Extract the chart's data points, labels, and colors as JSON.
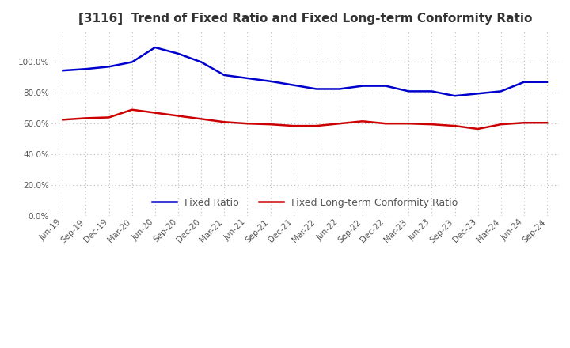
{
  "title": "[3116]  Trend of Fixed Ratio and Fixed Long-term Conformity Ratio",
  "x_labels": [
    "Jun-19",
    "Sep-19",
    "Dec-19",
    "Mar-20",
    "Jun-20",
    "Sep-20",
    "Dec-20",
    "Mar-21",
    "Jun-21",
    "Sep-21",
    "Dec-21",
    "Mar-22",
    "Jun-22",
    "Sep-22",
    "Dec-22",
    "Mar-23",
    "Jun-23",
    "Sep-23",
    "Dec-23",
    "Mar-24",
    "Jun-24",
    "Sep-24"
  ],
  "fixed_ratio": [
    94.5,
    95.5,
    97.0,
    100.0,
    109.5,
    105.5,
    100.0,
    91.5,
    89.5,
    87.5,
    85.0,
    82.5,
    82.5,
    84.5,
    84.5,
    81.0,
    81.0,
    78.0,
    79.5,
    81.0,
    87.0,
    87.0
  ],
  "fixed_lt_ratio": [
    62.5,
    63.5,
    64.0,
    69.0,
    67.0,
    65.0,
    63.0,
    61.0,
    60.0,
    59.5,
    58.5,
    58.5,
    60.0,
    61.5,
    60.0,
    60.0,
    59.5,
    58.5,
    56.5,
    59.5,
    60.5,
    60.5
  ],
  "fixed_ratio_color": "#0000CC",
  "fixed_lt_ratio_color": "#CC0000",
  "ylim": [
    0,
    120
  ],
  "yticks": [
    0,
    20,
    40,
    60,
    80,
    100
  ],
  "background_color": "#FFFFFF",
  "grid_color": "#BBBBBB",
  "title_color": "#333333",
  "tick_color": "#555555",
  "legend_fixed_ratio": "Fixed Ratio",
  "legend_fixed_lt_ratio": "Fixed Long-term Conformity Ratio",
  "title_fontsize": 11,
  "tick_fontsize": 7.5,
  "legend_fontsize": 9
}
